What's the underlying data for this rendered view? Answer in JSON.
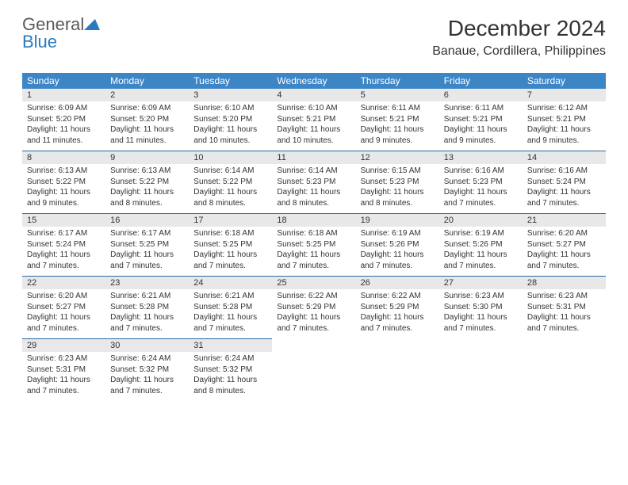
{
  "brand": {
    "name_part1": "General",
    "name_part2": "Blue",
    "colors": {
      "gray": "#5a5a5a",
      "blue": "#2b7ac0"
    }
  },
  "title": "December 2024",
  "location": "Banaue, Cordillera, Philippines",
  "day_headers": [
    "Sunday",
    "Monday",
    "Tuesday",
    "Wednesday",
    "Thursday",
    "Friday",
    "Saturday"
  ],
  "header_bg": "#3d86c6",
  "number_bg": "#e8e8e8",
  "divider_color": "#2b6aa8",
  "weeks": [
    [
      {
        "n": "1",
        "sunrise": "Sunrise: 6:09 AM",
        "sunset": "Sunset: 5:20 PM",
        "day1": "Daylight: 11 hours",
        "day2": "and 11 minutes."
      },
      {
        "n": "2",
        "sunrise": "Sunrise: 6:09 AM",
        "sunset": "Sunset: 5:20 PM",
        "day1": "Daylight: 11 hours",
        "day2": "and 11 minutes."
      },
      {
        "n": "3",
        "sunrise": "Sunrise: 6:10 AM",
        "sunset": "Sunset: 5:20 PM",
        "day1": "Daylight: 11 hours",
        "day2": "and 10 minutes."
      },
      {
        "n": "4",
        "sunrise": "Sunrise: 6:10 AM",
        "sunset": "Sunset: 5:21 PM",
        "day1": "Daylight: 11 hours",
        "day2": "and 10 minutes."
      },
      {
        "n": "5",
        "sunrise": "Sunrise: 6:11 AM",
        "sunset": "Sunset: 5:21 PM",
        "day1": "Daylight: 11 hours",
        "day2": "and 9 minutes."
      },
      {
        "n": "6",
        "sunrise": "Sunrise: 6:11 AM",
        "sunset": "Sunset: 5:21 PM",
        "day1": "Daylight: 11 hours",
        "day2": "and 9 minutes."
      },
      {
        "n": "7",
        "sunrise": "Sunrise: 6:12 AM",
        "sunset": "Sunset: 5:21 PM",
        "day1": "Daylight: 11 hours",
        "day2": "and 9 minutes."
      }
    ],
    [
      {
        "n": "8",
        "sunrise": "Sunrise: 6:13 AM",
        "sunset": "Sunset: 5:22 PM",
        "day1": "Daylight: 11 hours",
        "day2": "and 9 minutes."
      },
      {
        "n": "9",
        "sunrise": "Sunrise: 6:13 AM",
        "sunset": "Sunset: 5:22 PM",
        "day1": "Daylight: 11 hours",
        "day2": "and 8 minutes."
      },
      {
        "n": "10",
        "sunrise": "Sunrise: 6:14 AM",
        "sunset": "Sunset: 5:22 PM",
        "day1": "Daylight: 11 hours",
        "day2": "and 8 minutes."
      },
      {
        "n": "11",
        "sunrise": "Sunrise: 6:14 AM",
        "sunset": "Sunset: 5:23 PM",
        "day1": "Daylight: 11 hours",
        "day2": "and 8 minutes."
      },
      {
        "n": "12",
        "sunrise": "Sunrise: 6:15 AM",
        "sunset": "Sunset: 5:23 PM",
        "day1": "Daylight: 11 hours",
        "day2": "and 8 minutes."
      },
      {
        "n": "13",
        "sunrise": "Sunrise: 6:16 AM",
        "sunset": "Sunset: 5:23 PM",
        "day1": "Daylight: 11 hours",
        "day2": "and 7 minutes."
      },
      {
        "n": "14",
        "sunrise": "Sunrise: 6:16 AM",
        "sunset": "Sunset: 5:24 PM",
        "day1": "Daylight: 11 hours",
        "day2": "and 7 minutes."
      }
    ],
    [
      {
        "n": "15",
        "sunrise": "Sunrise: 6:17 AM",
        "sunset": "Sunset: 5:24 PM",
        "day1": "Daylight: 11 hours",
        "day2": "and 7 minutes."
      },
      {
        "n": "16",
        "sunrise": "Sunrise: 6:17 AM",
        "sunset": "Sunset: 5:25 PM",
        "day1": "Daylight: 11 hours",
        "day2": "and 7 minutes."
      },
      {
        "n": "17",
        "sunrise": "Sunrise: 6:18 AM",
        "sunset": "Sunset: 5:25 PM",
        "day1": "Daylight: 11 hours",
        "day2": "and 7 minutes."
      },
      {
        "n": "18",
        "sunrise": "Sunrise: 6:18 AM",
        "sunset": "Sunset: 5:25 PM",
        "day1": "Daylight: 11 hours",
        "day2": "and 7 minutes."
      },
      {
        "n": "19",
        "sunrise": "Sunrise: 6:19 AM",
        "sunset": "Sunset: 5:26 PM",
        "day1": "Daylight: 11 hours",
        "day2": "and 7 minutes."
      },
      {
        "n": "20",
        "sunrise": "Sunrise: 6:19 AM",
        "sunset": "Sunset: 5:26 PM",
        "day1": "Daylight: 11 hours",
        "day2": "and 7 minutes."
      },
      {
        "n": "21",
        "sunrise": "Sunrise: 6:20 AM",
        "sunset": "Sunset: 5:27 PM",
        "day1": "Daylight: 11 hours",
        "day2": "and 7 minutes."
      }
    ],
    [
      {
        "n": "22",
        "sunrise": "Sunrise: 6:20 AM",
        "sunset": "Sunset: 5:27 PM",
        "day1": "Daylight: 11 hours",
        "day2": "and 7 minutes."
      },
      {
        "n": "23",
        "sunrise": "Sunrise: 6:21 AM",
        "sunset": "Sunset: 5:28 PM",
        "day1": "Daylight: 11 hours",
        "day2": "and 7 minutes."
      },
      {
        "n": "24",
        "sunrise": "Sunrise: 6:21 AM",
        "sunset": "Sunset: 5:28 PM",
        "day1": "Daylight: 11 hours",
        "day2": "and 7 minutes."
      },
      {
        "n": "25",
        "sunrise": "Sunrise: 6:22 AM",
        "sunset": "Sunset: 5:29 PM",
        "day1": "Daylight: 11 hours",
        "day2": "and 7 minutes."
      },
      {
        "n": "26",
        "sunrise": "Sunrise: 6:22 AM",
        "sunset": "Sunset: 5:29 PM",
        "day1": "Daylight: 11 hours",
        "day2": "and 7 minutes."
      },
      {
        "n": "27",
        "sunrise": "Sunrise: 6:23 AM",
        "sunset": "Sunset: 5:30 PM",
        "day1": "Daylight: 11 hours",
        "day2": "and 7 minutes."
      },
      {
        "n": "28",
        "sunrise": "Sunrise: 6:23 AM",
        "sunset": "Sunset: 5:31 PM",
        "day1": "Daylight: 11 hours",
        "day2": "and 7 minutes."
      }
    ],
    [
      {
        "n": "29",
        "sunrise": "Sunrise: 6:23 AM",
        "sunset": "Sunset: 5:31 PM",
        "day1": "Daylight: 11 hours",
        "day2": "and 7 minutes."
      },
      {
        "n": "30",
        "sunrise": "Sunrise: 6:24 AM",
        "sunset": "Sunset: 5:32 PM",
        "day1": "Daylight: 11 hours",
        "day2": "and 7 minutes."
      },
      {
        "n": "31",
        "sunrise": "Sunrise: 6:24 AM",
        "sunset": "Sunset: 5:32 PM",
        "day1": "Daylight: 11 hours",
        "day2": "and 8 minutes."
      },
      null,
      null,
      null,
      null
    ]
  ]
}
